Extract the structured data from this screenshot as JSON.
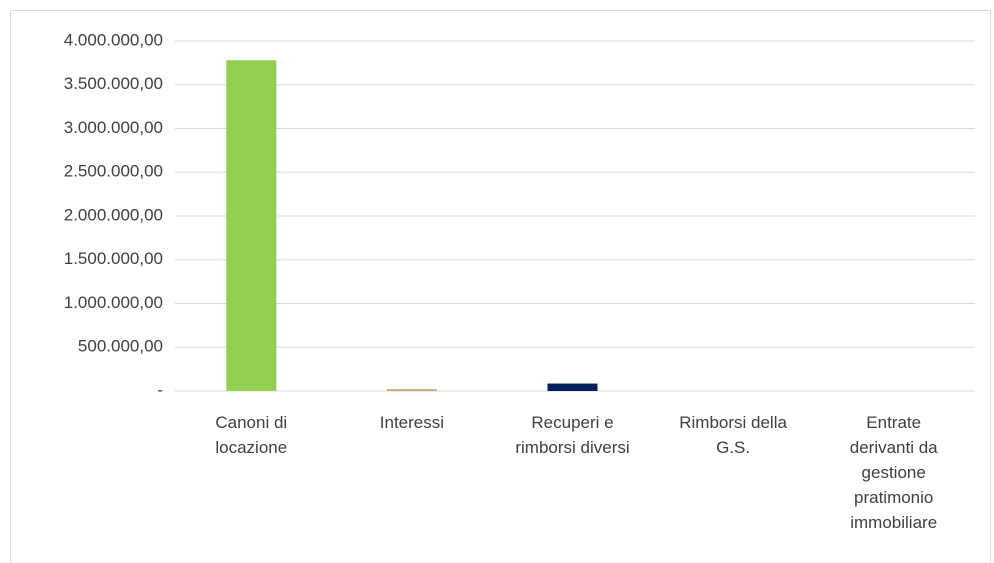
{
  "chart_data": {
    "type": "bar",
    "categories": [
      "Canoni di locazione",
      "Interessi",
      "Recuperi e rimborsi diversi",
      "Rimborsi della G.S.",
      "Entrate derivanti da gestione pratimonio immobiliare"
    ],
    "values": [
      3780000,
      20000,
      85000,
      0,
      0
    ],
    "colors": [
      "#92d050",
      "#c9a46a",
      "#002060",
      "#7f7f7f",
      "#7f7f7f"
    ],
    "ylim": [
      0,
      4000000
    ],
    "yticks": [
      {
        "value": 0,
        "label": "-"
      },
      {
        "value": 500000,
        "label": "500.000,00"
      },
      {
        "value": 1000000,
        "label": "1.000.000,00"
      },
      {
        "value": 1500000,
        "label": "1.500.000,00"
      },
      {
        "value": 2000000,
        "label": "2.000.000,00"
      },
      {
        "value": 2500000,
        "label": "2.500.000,00"
      },
      {
        "value": 3000000,
        "label": "3.000.000,00"
      },
      {
        "value": 3500000,
        "label": "3.500.000,00"
      },
      {
        "value": 4000000,
        "label": "4.000.000,00"
      }
    ],
    "grid": true
  }
}
